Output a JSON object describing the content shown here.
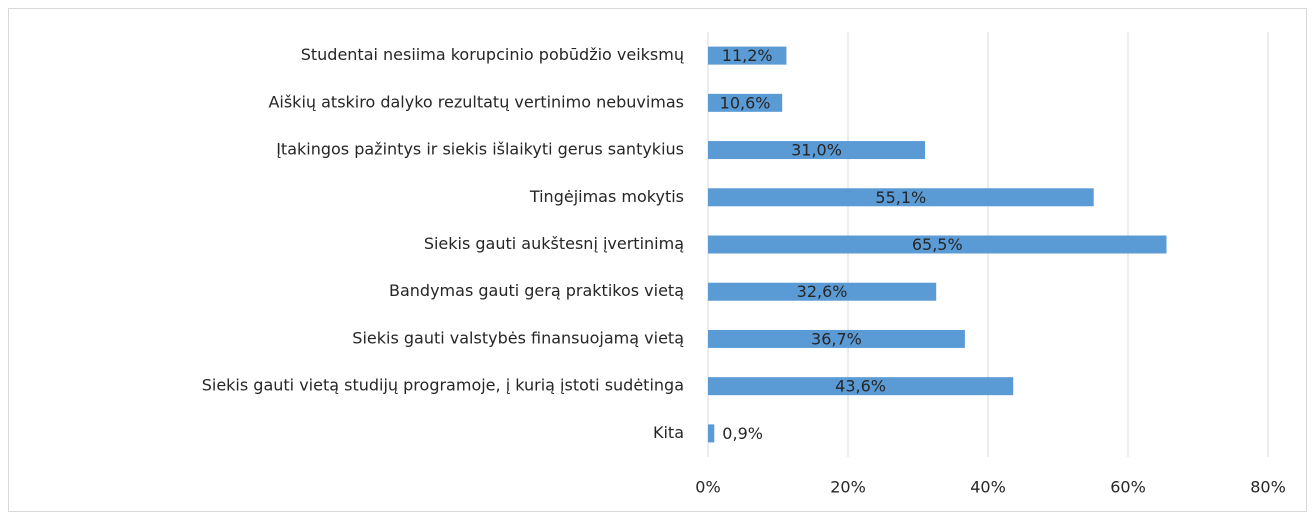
{
  "chart_data": {
    "type": "barh",
    "categories": [
      "Studentai nesiima korupcinio pobūdžio veiksmų",
      "Aiškių atskiro dalyko rezultatų vertinimo nebuvimas",
      "Įtakingos pažintys ir siekis išlaikyti gerus santykius",
      "Tingėjimas mokytis",
      "Siekis gauti aukštesnį įvertinimą",
      "Bandymas gauti gerą praktikos vietą",
      "Siekis gauti valstybės finansuojamą vietą",
      "Siekis gauti vietą studijų programoje, į kurią įstoti sudėtinga",
      "Kita"
    ],
    "values": [
      11.2,
      10.6,
      31.0,
      55.1,
      65.5,
      32.6,
      36.7,
      43.6,
      0.9
    ],
    "value_labels": [
      "11,2%",
      "10,6%",
      "31,0%",
      "55,1%",
      "65,5%",
      "32,6%",
      "36,7%",
      "43,6%",
      "0,9%"
    ],
    "color": "#5b9bd5",
    "xlim": [
      0,
      80
    ],
    "xticks": [
      {
        "value": 0,
        "label": "0%"
      },
      {
        "value": 20,
        "label": "20%"
      },
      {
        "value": 40,
        "label": "40%"
      },
      {
        "value": 60,
        "label": "60%"
      },
      {
        "value": 80,
        "label": "80%"
      }
    ],
    "grid": true
  }
}
